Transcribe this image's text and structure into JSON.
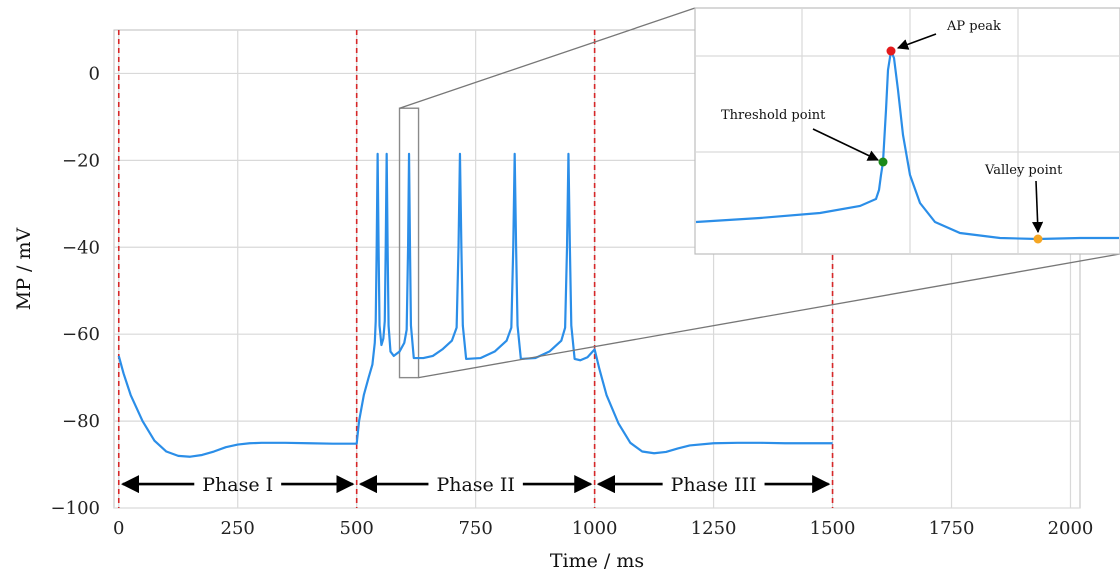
{
  "chart_data": {
    "type": "line",
    "xlabel": "Time / ms",
    "ylabel": "MP / mV",
    "xlim": [
      -10,
      2020
    ],
    "ylim": [
      -100,
      10
    ],
    "x_ticks": [
      0,
      250,
      500,
      750,
      1000,
      1250,
      1500,
      1750,
      2000
    ],
    "y_ticks": [
      -100,
      -80,
      -60,
      -40,
      -20,
      0
    ],
    "x_tick_labels": [
      "0",
      "250",
      "500",
      "750",
      "1000",
      "1250",
      "1500",
      "1750",
      "2000"
    ],
    "y_tick_labels": [
      "−100",
      "−80",
      "−60",
      "−40",
      "−20",
      "0"
    ],
    "grid": true,
    "line_color": "#2b8ee8",
    "marker_line_color": "#d62728",
    "phase_boundaries": [
      0,
      500,
      1000,
      1500
    ],
    "phases": [
      {
        "label": "Phase I",
        "start": 0,
        "end": 500
      },
      {
        "label": "Phase II",
        "start": 500,
        "end": 1000
      },
      {
        "label": "Phase III",
        "start": 1000,
        "end": 1500
      }
    ],
    "series": [
      {
        "points": [
          [
            0,
            -65
          ],
          [
            10,
            -69
          ],
          [
            25,
            -74
          ],
          [
            50,
            -80
          ],
          [
            75,
            -84.5
          ],
          [
            100,
            -87
          ],
          [
            125,
            -88
          ],
          [
            150,
            -88.2
          ],
          [
            175,
            -87.8
          ],
          [
            200,
            -87
          ],
          [
            225,
            -86
          ],
          [
            250,
            -85.4
          ],
          [
            275,
            -85.1
          ],
          [
            300,
            -85
          ],
          [
            350,
            -85
          ],
          [
            400,
            -85.1
          ],
          [
            450,
            -85.2
          ],
          [
            500,
            -85.2
          ],
          [
            505,
            -80
          ],
          [
            515,
            -74
          ],
          [
            525,
            -70
          ],
          [
            533,
            -67
          ],
          [
            538,
            -62
          ],
          [
            540,
            -57
          ],
          [
            542,
            -40
          ],
          [
            544,
            -18.5
          ],
          [
            546,
            -40
          ],
          [
            548,
            -58
          ],
          [
            552,
            -62.5
          ],
          [
            556,
            -61
          ],
          [
            559,
            -57
          ],
          [
            561,
            -40
          ],
          [
            563,
            -18.5
          ],
          [
            565,
            -40
          ],
          [
            567,
            -58
          ],
          [
            571,
            -64
          ],
          [
            578,
            -65
          ],
          [
            590,
            -64
          ],
          [
            600,
            -62
          ],
          [
            605,
            -59
          ],
          [
            608,
            -40
          ],
          [
            610,
            -18.5
          ],
          [
            612,
            -40
          ],
          [
            614,
            -58
          ],
          [
            620,
            -65.5
          ],
          [
            640,
            -65.5
          ],
          [
            660,
            -65
          ],
          [
            680,
            -63.5
          ],
          [
            700,
            -61.5
          ],
          [
            710,
            -58.5
          ],
          [
            714,
            -40
          ],
          [
            717,
            -18.5
          ],
          [
            720,
            -40
          ],
          [
            723,
            -58
          ],
          [
            730,
            -65.7
          ],
          [
            760,
            -65.5
          ],
          [
            790,
            -64
          ],
          [
            815,
            -61.5
          ],
          [
            825,
            -58.5
          ],
          [
            829,
            -40
          ],
          [
            832,
            -18.5
          ],
          [
            835,
            -40
          ],
          [
            838,
            -58
          ],
          [
            845,
            -65.7
          ],
          [
            875,
            -65.5
          ],
          [
            905,
            -64
          ],
          [
            930,
            -61.5
          ],
          [
            938,
            -58.5
          ],
          [
            942,
            -40
          ],
          [
            945,
            -18.5
          ],
          [
            948,
            -40
          ],
          [
            951,
            -58
          ],
          [
            958,
            -65.7
          ],
          [
            970,
            -66
          ],
          [
            985,
            -65.3
          ],
          [
            1000,
            -63.5
          ],
          [
            1010,
            -68
          ],
          [
            1025,
            -74
          ],
          [
            1050,
            -80.5
          ],
          [
            1075,
            -85
          ],
          [
            1100,
            -87
          ],
          [
            1125,
            -87.4
          ],
          [
            1150,
            -87.1
          ],
          [
            1175,
            -86.3
          ],
          [
            1200,
            -85.6
          ],
          [
            1250,
            -85.1
          ],
          [
            1300,
            -85
          ],
          [
            1350,
            -85
          ],
          [
            1400,
            -85.1
          ],
          [
            1450,
            -85.1
          ],
          [
            1500,
            -85.1
          ]
        ]
      }
    ],
    "inset": {
      "source_xlim": [
        590,
        630
      ],
      "source_ylim": [
        -70,
        -8
      ],
      "annotations": [
        {
          "label": "AP peak",
          "color": "#e31a1c"
        },
        {
          "label": "Threshold point",
          "color": "#1a8a1a"
        },
        {
          "label": "Valley point",
          "color": "#f5a623"
        }
      ]
    }
  }
}
